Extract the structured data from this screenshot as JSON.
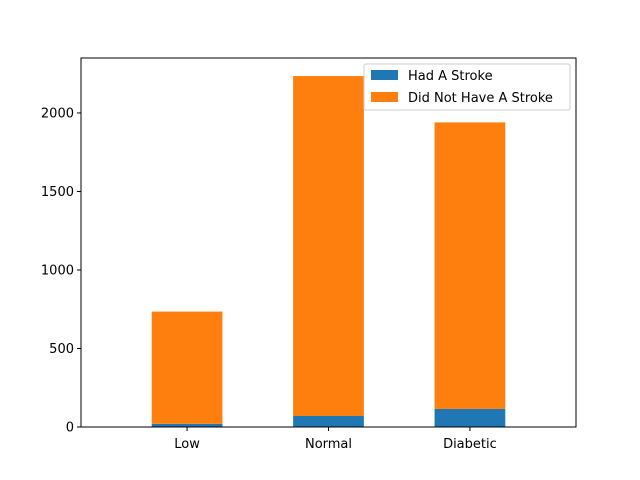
{
  "chart_data": {
    "type": "bar",
    "stacked": true,
    "categories": [
      "Low",
      "Normal",
      "Diabetic"
    ],
    "series": [
      {
        "name": "Had A Stroke",
        "values": [
          20,
          70,
          115
        ],
        "color": "#1f77b4"
      },
      {
        "name": "Did Not Have A Stroke",
        "values": [
          715,
          2165,
          1825
        ],
        "color": "#ff7f0e"
      }
    ],
    "title": "",
    "xlabel": "",
    "ylabel": "",
    "ylim": [
      0,
      2350
    ],
    "yticks": [
      0,
      500,
      1000,
      1500,
      2000
    ],
    "grid": false,
    "legend_position": "upper-right"
  }
}
